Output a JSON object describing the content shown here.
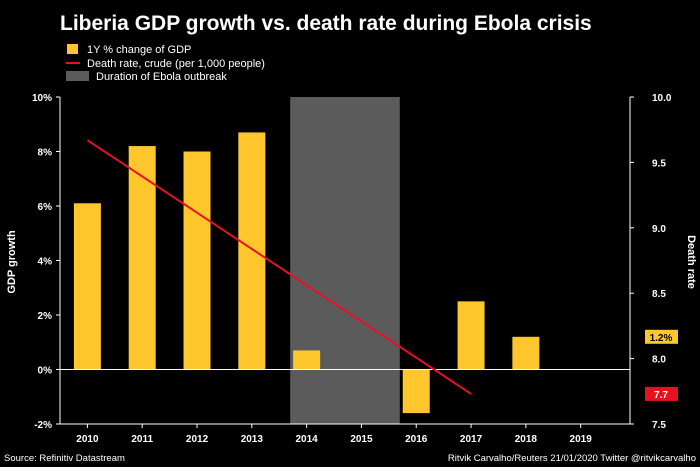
{
  "chart_data": {
    "type": "bar",
    "title": "Liberia GDP growth vs. death rate during Ebola crisis",
    "legend": [
      {
        "label": "1Y % change of GDP",
        "color": "#ffc72c",
        "kind": "bar"
      },
      {
        "label": "Death rate, crude (per 1,000 people)",
        "color": "#e8111f",
        "kind": "line"
      },
      {
        "label": "Duration of Ebola outbreak",
        "color": "#5b5b5b",
        "kind": "band"
      }
    ],
    "categories": [
      "2010",
      "2011",
      "2012",
      "2013",
      "2014",
      "2015",
      "2016",
      "2017",
      "2018",
      "2019"
    ],
    "series": [
      {
        "name": "1Y % change of GDP",
        "axis": "left",
        "type": "bar",
        "values": [
          6.1,
          8.2,
          8.0,
          8.7,
          0.7,
          null,
          -1.6,
          2.5,
          1.2,
          null
        ]
      },
      {
        "name": "Death rate, crude (per 1,000 people)",
        "axis": "right",
        "type": "line",
        "x": [
          2010,
          2017
        ],
        "values": [
          9.67,
          7.73
        ]
      }
    ],
    "outbreak_band": {
      "start": 2013.7,
      "end": 2015.7
    },
    "ylabel": "GDP growth",
    "ylabel_right": "Death rate",
    "ylim": [
      -2,
      10
    ],
    "yticks": [
      "-2%",
      "0%",
      "2%",
      "4%",
      "6%",
      "8%",
      "10%"
    ],
    "ytick_values": [
      -2,
      0,
      2,
      4,
      6,
      8,
      10
    ],
    "ylim_right": [
      7.5,
      10.0
    ],
    "yticks_right": [
      "7.5",
      "8.0",
      "8.5",
      "9.0",
      "9.5",
      "10.0"
    ],
    "ytick_values_right": [
      7.5,
      8.0,
      8.5,
      9.0,
      9.5,
      10.0
    ],
    "badges": [
      {
        "label": "1.2%",
        "axis": "left",
        "value": 1.2,
        "bg": "#ffc72c",
        "fg": "#000"
      },
      {
        "label": "7.7",
        "axis": "right",
        "value": 7.73,
        "bg": "#e8111f",
        "fg": "#fff"
      }
    ],
    "source": "Source: Refinitiv Datastream",
    "credit": "Ritvik Carvalho/Reuters 21/01/2020 Twitter @ritvikcarvalho"
  }
}
